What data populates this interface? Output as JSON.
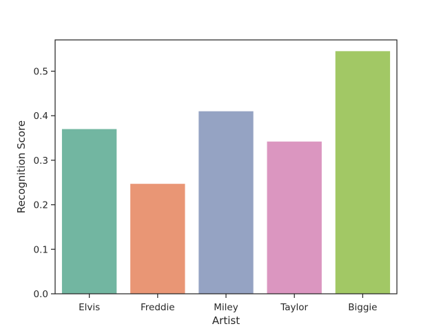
{
  "chart_data": {
    "type": "bar",
    "title": "",
    "xlabel": "Artist",
    "ylabel": "Recognition Score",
    "categories": [
      "Elvis",
      "Freddie",
      "Miley",
      "Taylor",
      "Biggie"
    ],
    "values": [
      0.37,
      0.247,
      0.41,
      0.342,
      0.545
    ],
    "ylim": [
      0,
      0.5703
    ],
    "yticks": [
      0.0,
      0.1,
      0.2,
      0.3,
      0.4,
      0.5
    ],
    "ytick_labels": [
      "0.0",
      "0.1",
      "0.2",
      "0.3",
      "0.4",
      "0.5"
    ],
    "grid": false,
    "colors": [
      "#72b6a1",
      "#e99675",
      "#95a3c3",
      "#db96c0",
      "#a2c865"
    ],
    "axis_color": "#262626"
  }
}
